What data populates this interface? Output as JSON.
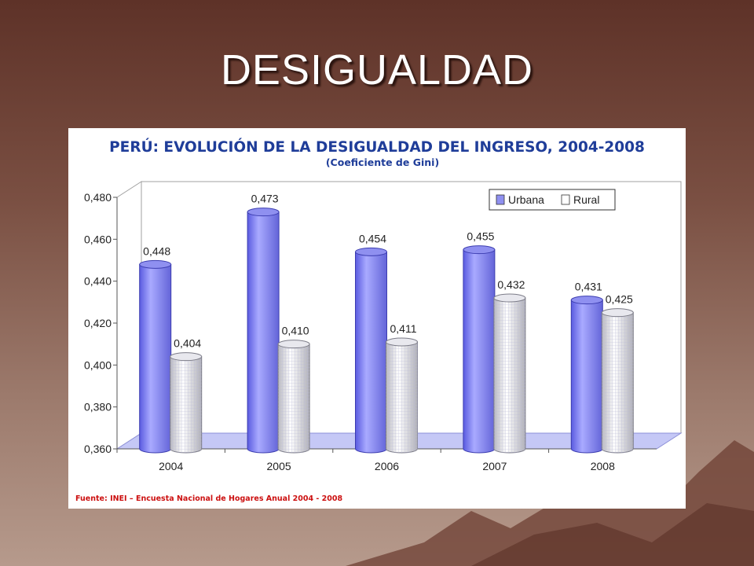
{
  "slide": {
    "title": "DESIGUALDAD"
  },
  "chart_data": {
    "type": "bar",
    "title": "PERÚ: EVOLUCIÓN DE LA DESIGUALDAD DEL INGRESO, 2004-2008",
    "subtitle": "(Coeficiente de Gini)",
    "categories": [
      "2004",
      "2005",
      "2006",
      "2007",
      "2008"
    ],
    "series": [
      {
        "name": "Urbana",
        "values": [
          0.448,
          0.473,
          0.454,
          0.455,
          0.431
        ],
        "labels": [
          "0,448",
          "0,473",
          "0,454",
          "0,455",
          "0,431"
        ]
      },
      {
        "name": "Rural",
        "values": [
          0.404,
          0.41,
          0.411,
          0.432,
          0.425
        ],
        "labels": [
          "0,404",
          "0,410",
          "0,411",
          "0,432",
          "0,425"
        ]
      }
    ],
    "ylim": [
      0.36,
      0.48
    ],
    "yticks": [
      "0,360",
      "0,380",
      "0,400",
      "0,420",
      "0,440",
      "0,460",
      "0,480"
    ],
    "legend": "top-right",
    "grid": false,
    "source": "Fuente: INEI – Encuesta Nacional de Hogares Anual 2004 - 2008",
    "colors": {
      "urbana": "#8f90f0",
      "rural": "#e4e4e8",
      "title": "#1f3d99",
      "source": "#cc1010",
      "floor": "#c5c8f6"
    }
  }
}
